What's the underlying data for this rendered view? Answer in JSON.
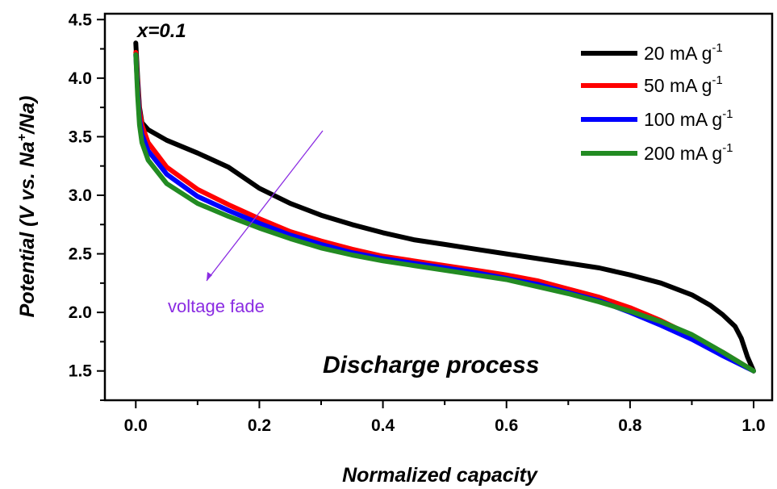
{
  "chart_data": {
    "type": "line",
    "xlabel": "Normalized capacity",
    "ylabel": {
      "main": "Potential (V vs. Na",
      "sup": "+",
      "tail": "/Na)"
    },
    "xlim": [
      -0.05,
      1.03
    ],
    "ylim": [
      1.25,
      4.55
    ],
    "x_ticks": [
      "0.0",
      "0.2",
      "0.4",
      "0.6",
      "0.8",
      "1.0"
    ],
    "y_ticks": [
      "1.5",
      "2.0",
      "2.5",
      "3.0",
      "3.5",
      "4.0",
      "4.5"
    ],
    "legend_position": "top-right",
    "annotations": {
      "composition": "x=0.1",
      "fade": "voltage fade",
      "fade_color": "#8A2BE2",
      "process": "Discharge process"
    },
    "series": [
      {
        "name": "20 mA g",
        "name_sup": "-1",
        "color": "#000000",
        "x": [
          0.0,
          0.003,
          0.006,
          0.01,
          0.02,
          0.05,
          0.1,
          0.15,
          0.2,
          0.25,
          0.3,
          0.35,
          0.4,
          0.45,
          0.5,
          0.55,
          0.6,
          0.65,
          0.7,
          0.75,
          0.8,
          0.85,
          0.9,
          0.93,
          0.95,
          0.97,
          0.98,
          0.99,
          1.0
        ],
        "y": [
          4.3,
          4.0,
          3.75,
          3.62,
          3.56,
          3.47,
          3.36,
          3.24,
          3.06,
          2.93,
          2.83,
          2.75,
          2.68,
          2.62,
          2.58,
          2.54,
          2.5,
          2.46,
          2.42,
          2.38,
          2.32,
          2.25,
          2.15,
          2.06,
          1.98,
          1.88,
          1.78,
          1.62,
          1.5
        ]
      },
      {
        "name": "50 mA g",
        "name_sup": "-1",
        "color": "#FF0000",
        "x": [
          0.0,
          0.003,
          0.006,
          0.01,
          0.02,
          0.05,
          0.1,
          0.15,
          0.2,
          0.25,
          0.3,
          0.35,
          0.4,
          0.45,
          0.5,
          0.55,
          0.6,
          0.65,
          0.7,
          0.75,
          0.8,
          0.85,
          0.9,
          0.95,
          1.0
        ],
        "y": [
          4.22,
          3.95,
          3.72,
          3.6,
          3.45,
          3.24,
          3.05,
          2.92,
          2.8,
          2.69,
          2.61,
          2.54,
          2.48,
          2.44,
          2.4,
          2.36,
          2.32,
          2.27,
          2.2,
          2.13,
          2.04,
          1.93,
          1.8,
          1.66,
          1.5
        ]
      },
      {
        "name": "100 mA g",
        "name_sup": "-1",
        "color": "#0000FF",
        "x": [
          0.0,
          0.003,
          0.006,
          0.01,
          0.02,
          0.05,
          0.1,
          0.15,
          0.2,
          0.25,
          0.3,
          0.35,
          0.4,
          0.45,
          0.5,
          0.55,
          0.6,
          0.65,
          0.7,
          0.75,
          0.8,
          0.85,
          0.9,
          0.95,
          1.0
        ],
        "y": [
          4.2,
          3.9,
          3.65,
          3.52,
          3.38,
          3.18,
          2.99,
          2.87,
          2.76,
          2.66,
          2.58,
          2.51,
          2.46,
          2.42,
          2.38,
          2.34,
          2.29,
          2.24,
          2.17,
          2.1,
          2.0,
          1.89,
          1.77,
          1.63,
          1.5
        ]
      },
      {
        "name": "200 mA g",
        "name_sup": "-1",
        "color": "#228B22",
        "x": [
          0.0,
          0.003,
          0.006,
          0.01,
          0.02,
          0.05,
          0.1,
          0.15,
          0.2,
          0.25,
          0.3,
          0.35,
          0.4,
          0.45,
          0.5,
          0.55,
          0.6,
          0.65,
          0.7,
          0.75,
          0.8,
          0.85,
          0.9,
          0.95,
          1.0
        ],
        "y": [
          4.2,
          3.85,
          3.6,
          3.45,
          3.3,
          3.1,
          2.93,
          2.82,
          2.72,
          2.63,
          2.55,
          2.49,
          2.44,
          2.4,
          2.36,
          2.32,
          2.28,
          2.22,
          2.16,
          2.09,
          2.01,
          1.92,
          1.81,
          1.66,
          1.5
        ]
      }
    ]
  }
}
